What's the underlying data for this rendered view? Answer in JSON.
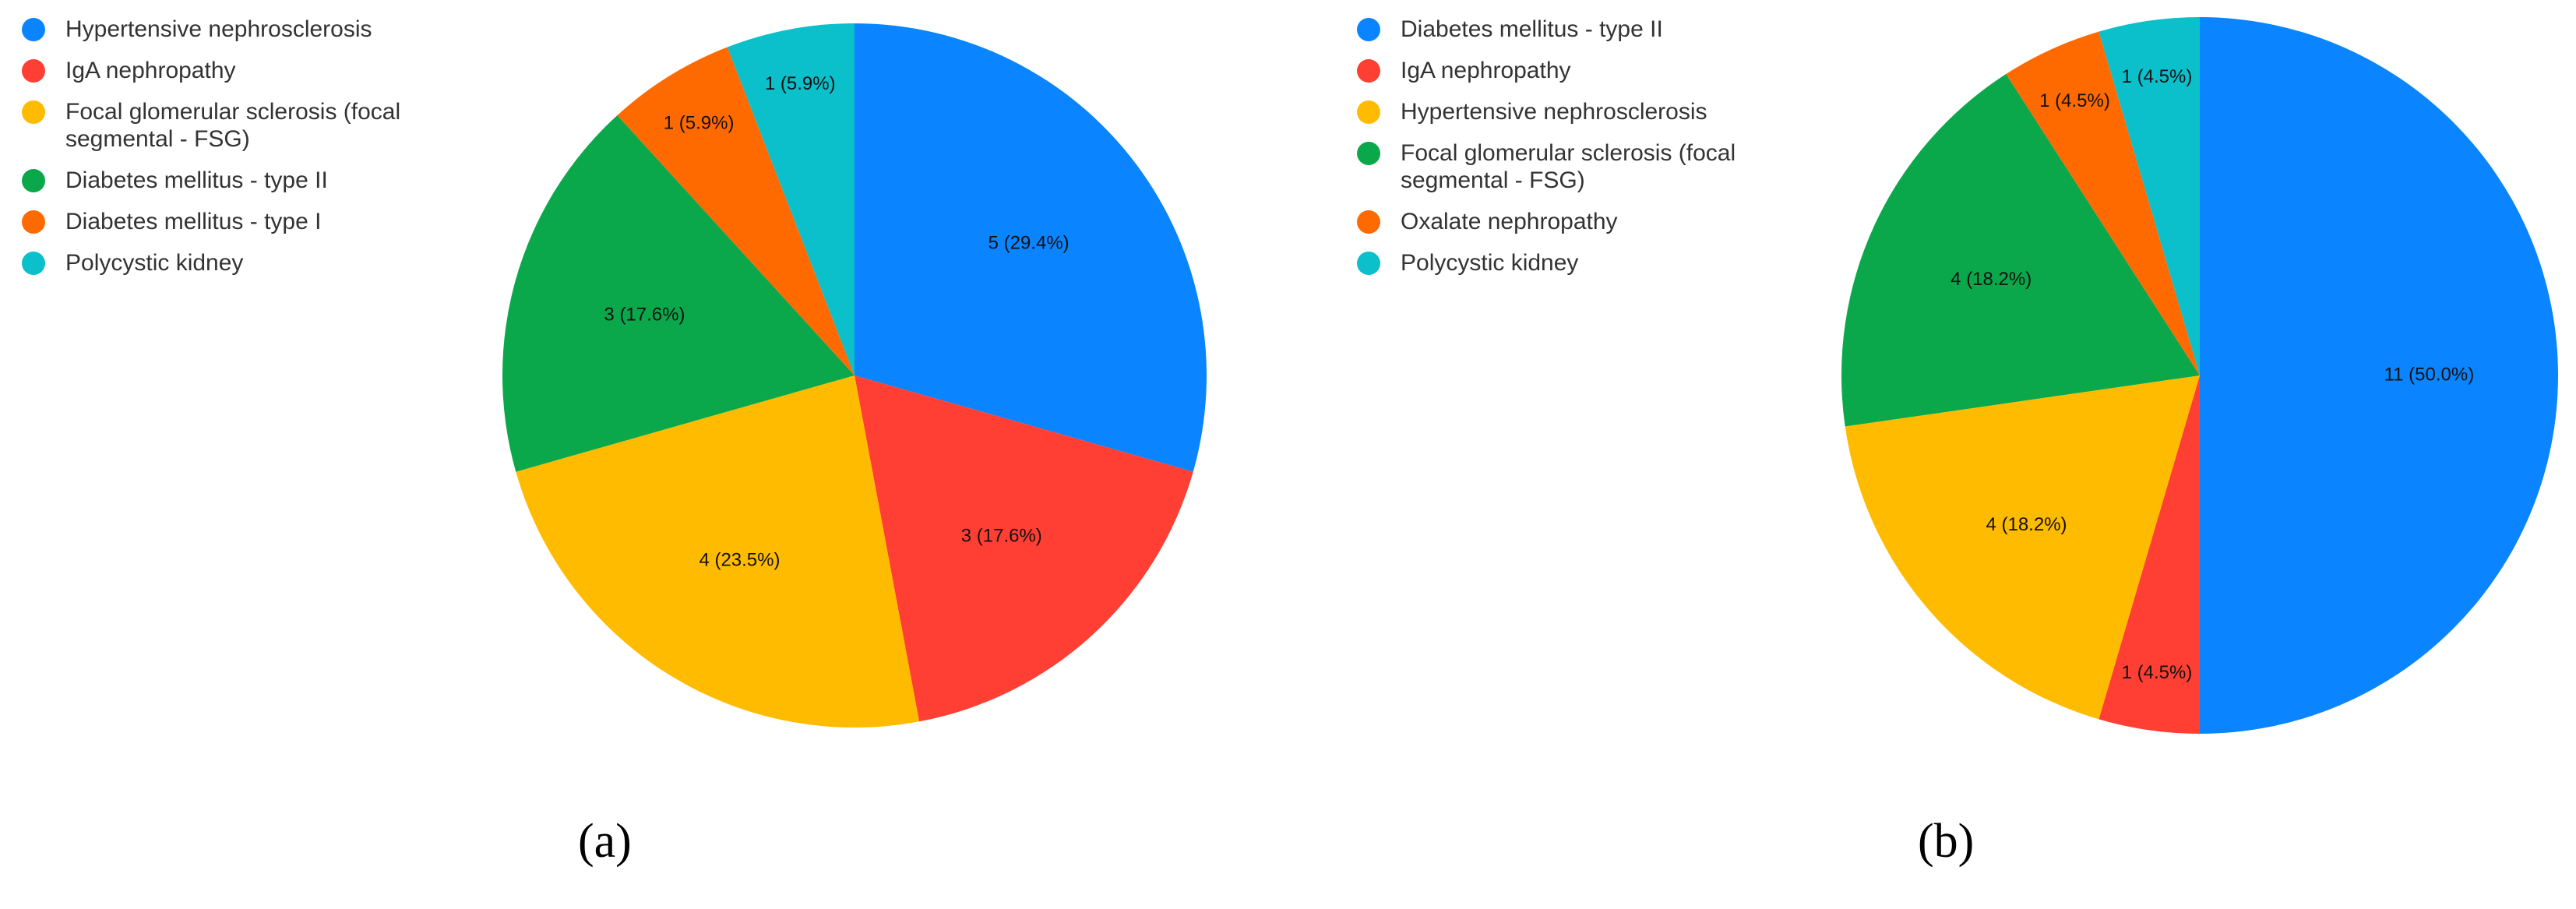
{
  "chart_data": [
    {
      "type": "pie",
      "caption": "(a)",
      "title": "",
      "legend_position": "top-left",
      "slices": [
        {
          "name": "Hypertensive nephrosclerosis",
          "value": 5,
          "label": "5 (29.4%)",
          "color": "#0a84ff"
        },
        {
          "name": "IgA nephropathy",
          "value": 3,
          "label": "3 (17.6%)",
          "color": "#ff3f34"
        },
        {
          "name": "Focal glomerular sclerosis (focal segmental - FSG)",
          "value": 4,
          "label": "4 (23.5%)",
          "color": "#ffbb00"
        },
        {
          "name": "Diabetes mellitus - type II",
          "value": 3,
          "label": "3 (17.6%)",
          "color": "#0aa84a"
        },
        {
          "name": "Diabetes mellitus - type I",
          "value": 1,
          "label": "1 (5.9%)",
          "color": "#ff6a00"
        },
        {
          "name": "Polycystic kidney",
          "value": 1,
          "label": "1 (5.9%)",
          "color": "#0bbfcb"
        }
      ]
    },
    {
      "type": "pie",
      "caption": "(b)",
      "title": "",
      "legend_position": "top-left",
      "slices": [
        {
          "name": "Diabetes mellitus - type II",
          "value": 11,
          "label": "11 (50.0%)",
          "color": "#0a84ff"
        },
        {
          "name": "IgA nephropathy",
          "value": 1,
          "label": "1 (4.5%)",
          "color": "#ff3f34"
        },
        {
          "name": "Hypertensive nephrosclerosis",
          "value": 4,
          "label": "4 (18.2%)",
          "color": "#ffbb00"
        },
        {
          "name": "Focal glomerular sclerosis (focal segmental - FSG)",
          "value": 4,
          "label": "4 (18.2%)",
          "color": "#0aa84a"
        },
        {
          "name": "Oxalate nephropathy",
          "value": 1,
          "label": "1 (4.5%)",
          "color": "#ff6a00"
        },
        {
          "name": "Polycystic kidney",
          "value": 1,
          "label": "1 (4.5%)",
          "color": "#0bbfcb"
        }
      ]
    }
  ]
}
